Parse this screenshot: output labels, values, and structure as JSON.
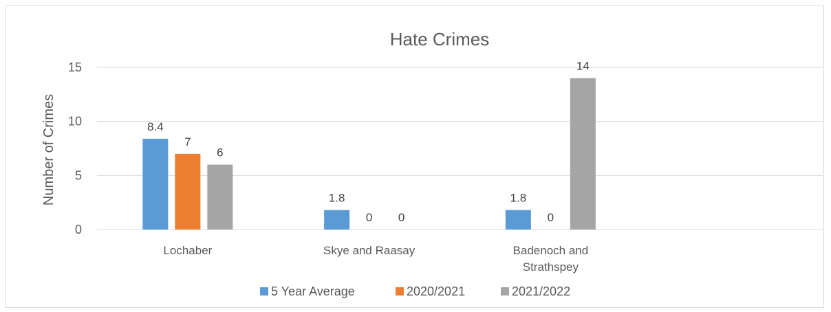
{
  "chart_data": {
    "type": "bar",
    "title": "Hate Crimes",
    "ylabel": "Number of Crimes",
    "xlabel": "",
    "ylim": [
      0,
      15
    ],
    "yticks": [
      0,
      5,
      10,
      15
    ],
    "grid": true,
    "legend": "bottom",
    "categories": [
      [
        "Lochaber"
      ],
      [
        "Skye and Raasay"
      ],
      [
        "Badenoch and",
        "Strathspey"
      ],
      [
        ""
      ]
    ],
    "series": [
      {
        "name": "5 Year Average",
        "color": "#5b9bd5",
        "values": [
          8.4,
          1.8,
          1.8,
          null
        ]
      },
      {
        "name": "2020/2021",
        "color": "#ed7d31",
        "values": [
          7,
          0,
          0,
          null
        ]
      },
      {
        "name": "2021/2022",
        "color": "#a5a5a5",
        "values": [
          6,
          0,
          14,
          null
        ]
      }
    ]
  }
}
